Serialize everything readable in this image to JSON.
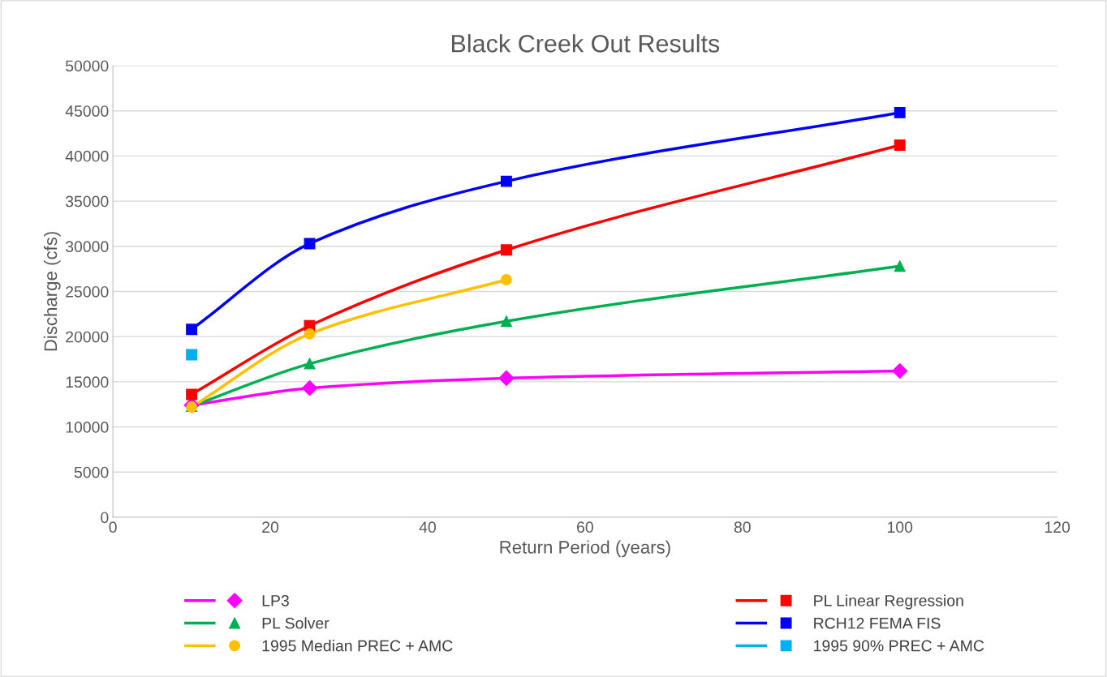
{
  "chart_data": {
    "type": "line",
    "title": "Black Creek Out Results",
    "xlabel": "Return Period (years)",
    "ylabel": "Discharge (cfs)",
    "xlim": [
      0,
      120
    ],
    "xticks": [
      0,
      20,
      40,
      60,
      80,
      100,
      120
    ],
    "ylim": [
      0,
      50000
    ],
    "yticks": [
      0,
      5000,
      10000,
      15000,
      20000,
      25000,
      30000,
      35000,
      40000,
      45000,
      50000
    ],
    "grid": "y",
    "legend": "bottom",
    "series": [
      {
        "name": "LP3",
        "color": "#ff00ff",
        "marker": "diamond",
        "x": [
          10,
          25,
          50,
          100
        ],
        "values": [
          12400,
          14300,
          15400,
          16200
        ]
      },
      {
        "name": "PL Linear Regression",
        "color": "#ff0000",
        "marker": "square",
        "x": [
          10,
          25,
          50,
          100
        ],
        "values": [
          13600,
          21200,
          29600,
          41200
        ]
      },
      {
        "name": "PL Solver",
        "color": "#00b050",
        "marker": "triangle",
        "x": [
          10,
          25,
          50,
          100
        ],
        "values": [
          12300,
          17000,
          21700,
          27800
        ]
      },
      {
        "name": "RCH12 FEMA FIS",
        "color": "#0000ff",
        "marker": "square",
        "x": [
          10,
          25,
          50,
          100
        ],
        "values": [
          20800,
          30300,
          37200,
          44800
        ]
      },
      {
        "name": "1995 Median PREC + AMC",
        "color": "#ffc000",
        "marker": "circle",
        "x": [
          10,
          25,
          50
        ],
        "values": [
          12200,
          20300,
          26300
        ]
      },
      {
        "name": "1995 90% PREC + AMC",
        "color": "#00b0f0",
        "marker": "square",
        "x": [
          10
        ],
        "values": [
          18000
        ]
      }
    ]
  }
}
